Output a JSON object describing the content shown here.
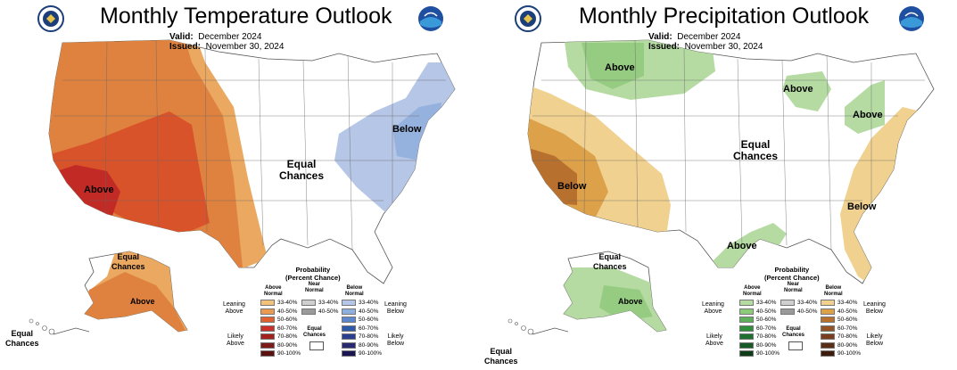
{
  "temperature": {
    "title": "Monthly Temperature Outlook",
    "valid_label": "Valid:",
    "valid_value": "December 2024",
    "issued_label": "Issued:",
    "issued_value": "November 30, 2024",
    "labels": {
      "above_conus": "Above",
      "below_conus": "Below",
      "equal_chances_conus_1": "Equal",
      "equal_chances_conus_2": "Chances",
      "equal_chances_ak_1": "Equal",
      "equal_chances_ak_2": "Chances",
      "above_ak": "Above",
      "equal_chances_hi_1": "Equal",
      "equal_chances_hi_2": "Chances"
    },
    "legend": {
      "title_1": "Probability",
      "title_2": "(Percent Chance)",
      "above_h1": "Above",
      "above_h2": "Normal",
      "near_h1": "Near",
      "near_h2": "Normal",
      "below_h1": "Below",
      "below_h2": "Normal",
      "leaning_above_1": "Leaning",
      "leaning_above_2": "Above",
      "likely_above_1": "Likely",
      "likely_above_2": "Above",
      "leaning_below_1": "Leaning",
      "leaning_below_2": "Below",
      "likely_below_1": "Likely",
      "likely_below_2": "Below",
      "equal_1": "Equal",
      "equal_2": "Chances",
      "above_rows": [
        "33-40%",
        "40-50%",
        "50-60%",
        "60-70%",
        "70-80%",
        "80-90%",
        "90-100%"
      ],
      "near_rows": [
        "33-40%",
        "40-50%"
      ],
      "below_rows": [
        "33-40%",
        "40-50%",
        "50-60%",
        "60-70%",
        "70-80%",
        "80-90%",
        "90-100%"
      ],
      "above_colors": [
        "#f3c27a",
        "#eb9b4f",
        "#e0602f",
        "#c9302c",
        "#a3201f",
        "#7d1a1a",
        "#5c1010"
      ],
      "near_colors": [
        "#cfcfcf",
        "#9a9a9a"
      ],
      "below_colors": [
        "#b6c6e6",
        "#8fb0dd",
        "#5d88cc",
        "#2f5aa8",
        "#2a3f8f",
        "#28296f",
        "#1a1550"
      ]
    }
  },
  "precipitation": {
    "title": "Monthly Precipitation Outlook",
    "valid_label": "Valid:",
    "valid_value": "December 2024",
    "issued_label": "Issued:",
    "issued_value": "November 30, 2024",
    "labels": {
      "above_nw": "Above",
      "above_gl": "Above",
      "above_ne": "Above",
      "below_sw": "Below",
      "below_se": "Below",
      "above_gulf": "Above",
      "equal_chances_conus_1": "Equal",
      "equal_chances_conus_2": "Chances",
      "equal_chances_ak_1": "Equal",
      "equal_chances_ak_2": "Chances",
      "above_ak": "Above",
      "equal_chances_hi_1": "Equal",
      "equal_chances_hi_2": "Chances"
    },
    "legend": {
      "title_1": "Probability",
      "title_2": "(Percent Chance)",
      "above_h1": "Above",
      "above_h2": "Normal",
      "near_h1": "Near",
      "near_h2": "Normal",
      "below_h1": "Below",
      "below_h2": "Normal",
      "leaning_above_1": "Leaning",
      "leaning_above_2": "Above",
      "likely_above_1": "Likely",
      "likely_above_2": "Above",
      "leaning_below_1": "Leaning",
      "leaning_below_2": "Below",
      "likely_below_1": "Likely",
      "likely_below_2": "Below",
      "equal_1": "Equal",
      "equal_2": "Chances",
      "above_rows": [
        "33-40%",
        "40-50%",
        "50-60%",
        "60-70%",
        "70-80%",
        "80-90%",
        "90-100%"
      ],
      "near_rows": [
        "33-40%",
        "40-50%"
      ],
      "below_rows": [
        "33-40%",
        "40-50%",
        "50-60%",
        "60-70%",
        "70-80%",
        "80-90%",
        "90-100%"
      ],
      "above_colors": [
        "#b5dba3",
        "#8ccb7a",
        "#5fb05a",
        "#2f8f3a",
        "#1f7030",
        "#175a25",
        "#0e3d18"
      ],
      "near_colors": [
        "#cfcfcf",
        "#9a9a9a"
      ],
      "below_colors": [
        "#f0d18f",
        "#dca149",
        "#b8702f",
        "#945227",
        "#7a3d1f",
        "#5c2c14",
        "#3e1c0c"
      ]
    }
  },
  "colors": {
    "temp_above_1": "#eba860",
    "temp_above_2": "#e0823f",
    "temp_above_3": "#d9532a",
    "temp_above_4": "#c22a25",
    "temp_below_1": "#b6c6e6",
    "temp_below_2": "#95b2de",
    "precip_above_1": "#b5dba3",
    "precip_above_2": "#95cc82",
    "precip_below_1": "#f0d18f",
    "precip_below_2": "#dca149",
    "precip_below_3": "#b8702f"
  },
  "icons": [
    "noaa-logo-icon",
    "doc-seal-icon"
  ]
}
